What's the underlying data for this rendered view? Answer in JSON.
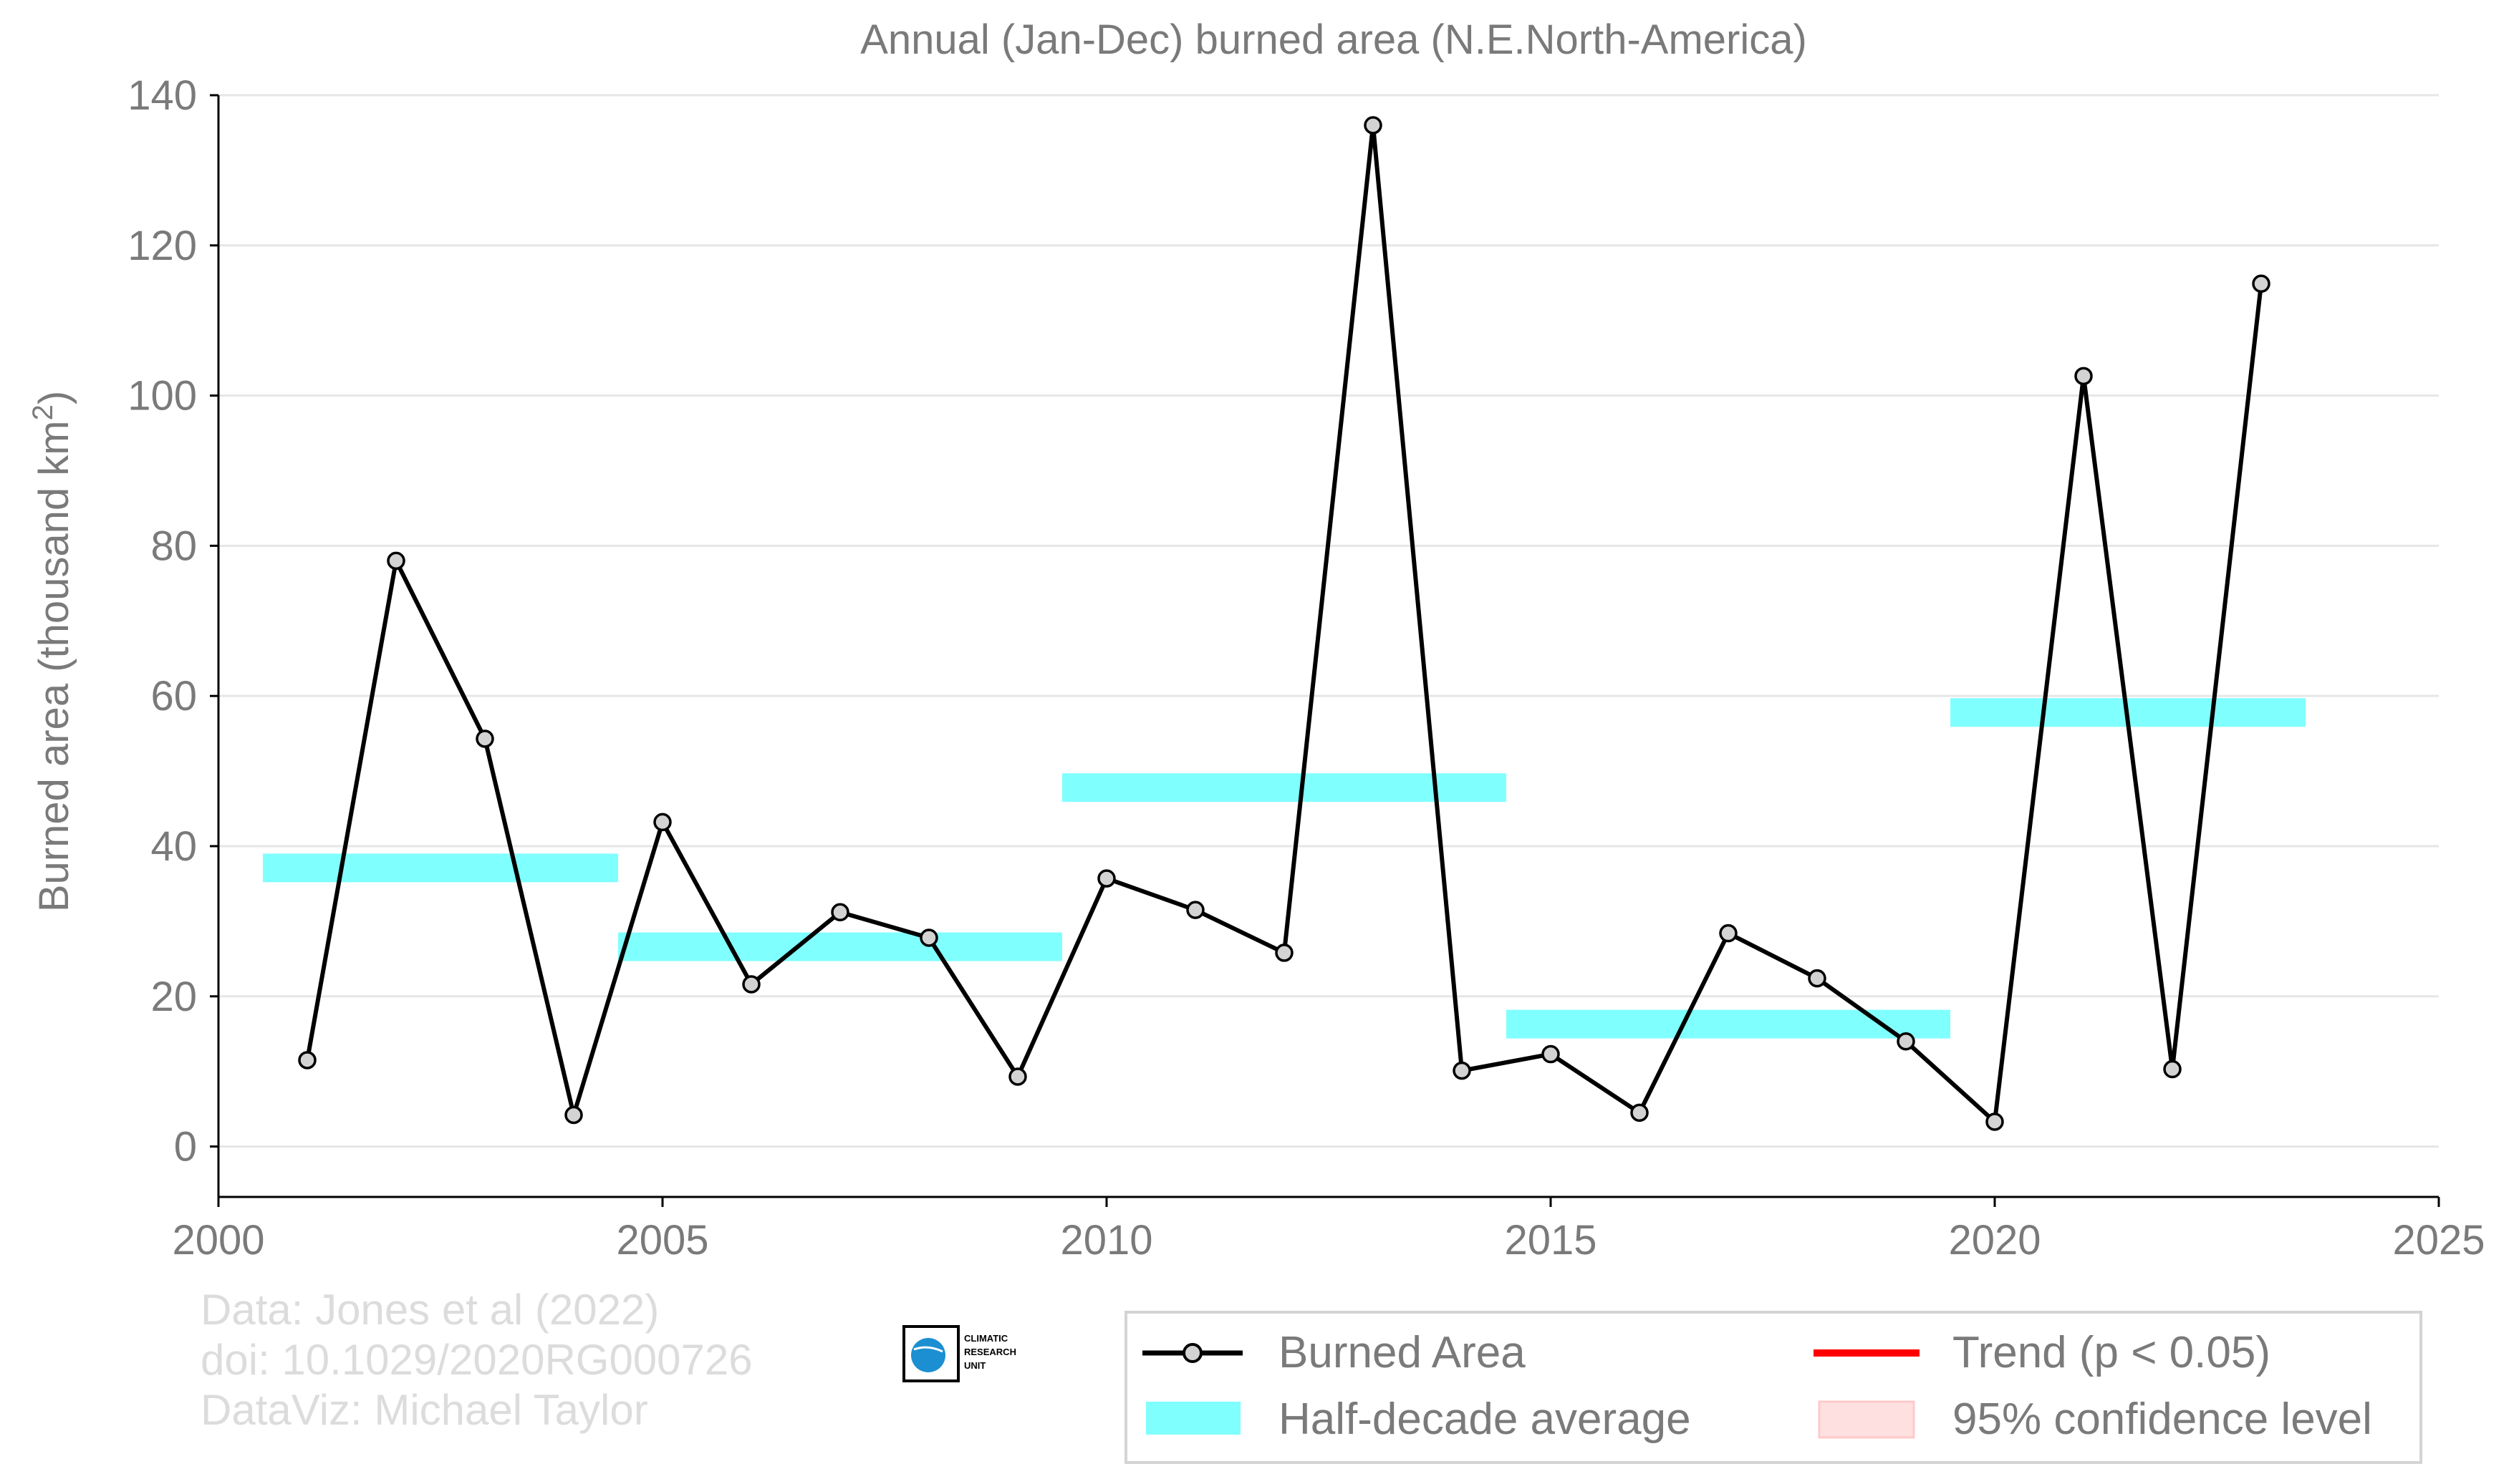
{
  "chart_data": {
    "type": "line",
    "title": "Annual (Jan-Dec) burned area (N.E.North-America)",
    "ylabel": "Burned area (thousand km",
    "ylabel_superscript": "2",
    "ylabel_suffix": ")",
    "xlabel": "",
    "xlim": [
      2000,
      2025
    ],
    "ylim": [
      -7,
      140
    ],
    "grid": true,
    "x_ticks": [
      2000,
      2005,
      2010,
      2015,
      2020,
      2025
    ],
    "y_ticks": [
      0,
      20,
      40,
      60,
      80,
      100,
      120,
      140
    ],
    "series": [
      {
        "name": "Burned Area",
        "color": "#000000",
        "marker_fill": "#d3d3d3",
        "x": [
          2001,
          2002,
          2003,
          2004,
          2005,
          2006,
          2007,
          2008,
          2009,
          2010,
          2011,
          2012,
          2013,
          2014,
          2015,
          2016,
          2017,
          2018,
          2019,
          2020,
          2021,
          2022,
          2023
        ],
        "y": [
          11.5,
          78.0,
          54.3,
          4.2,
          43.2,
          21.6,
          31.2,
          27.8,
          9.3,
          35.7,
          31.5,
          25.8,
          136.0,
          10.1,
          12.3,
          4.5,
          28.4,
          22.4,
          14.0,
          3.3,
          102.6,
          10.3,
          114.9
        ]
      }
    ],
    "half_decade_average": {
      "name": "Half-decade average",
      "color": "#80ffff",
      "segments": [
        {
          "x_start": 2000.5,
          "x_end": 2004.5,
          "y": 37.1
        },
        {
          "x_start": 2004.5,
          "x_end": 2009.5,
          "y": 26.6
        },
        {
          "x_start": 2009.5,
          "x_end": 2014.5,
          "y": 47.8
        },
        {
          "x_start": 2014.5,
          "x_end": 2019.5,
          "y": 16.3
        },
        {
          "x_start": 2019.5,
          "x_end": 2023.5,
          "y": 57.8
        }
      ]
    },
    "legend": {
      "position": "bottom-right",
      "items": [
        {
          "label": "Burned Area",
          "kind": "line-marker",
          "color": "#000000"
        },
        {
          "label": "Trend (p < 0.05)",
          "kind": "line",
          "color": "#ff0000"
        },
        {
          "label": "Half-decade average",
          "kind": "band",
          "color": "#80ffff"
        },
        {
          "label": "95% confidence level",
          "kind": "patch",
          "color": "#ffe0e0"
        }
      ]
    }
  },
  "credits": {
    "line1": "Data: Jones et al (2022)",
    "line2": "doi: 10.1029/2020RG000726",
    "line3": "DataViz: Michael Taylor"
  },
  "logo": {
    "line1": "CLIMATIC",
    "line2": "RESEARCH",
    "line3": "UNIT"
  }
}
